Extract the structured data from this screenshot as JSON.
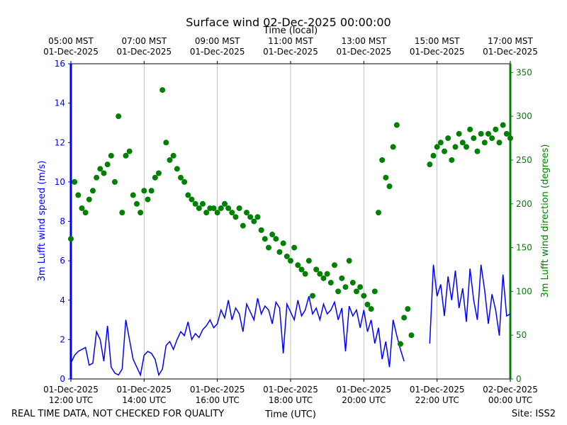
{
  "chart_data": {
    "type": "line",
    "title": "Surface wind 02-Dec-2025 00:00:00",
    "top_axis_label": "Time (local)",
    "xlabel": "Time (UTC)",
    "ylabel": "3m Lufft wind speed (m/s)",
    "y2label": "3m Lufft wind direction (degrees)",
    "footer_left": "REAL TIME DATA, NOT CHECKED FOR QUALITY",
    "footer_right": "Site: ISS2",
    "xlim": [
      12,
      24
    ],
    "xticks": [
      {
        "value": 12,
        "label": [
          "01-Dec-2025",
          "12:00 UTC"
        ]
      },
      {
        "value": 14,
        "label": [
          "01-Dec-2025",
          "14:00 UTC"
        ]
      },
      {
        "value": 16,
        "label": [
          "01-Dec-2025",
          "16:00 UTC"
        ]
      },
      {
        "value": 18,
        "label": [
          "01-Dec-2025",
          "18:00 UTC"
        ]
      },
      {
        "value": 20,
        "label": [
          "01-Dec-2025",
          "20:00 UTC"
        ]
      },
      {
        "value": 22,
        "label": [
          "01-Dec-2025",
          "22:00 UTC"
        ]
      },
      {
        "value": 24,
        "label": [
          "02-Dec-2025",
          "00:00 UTC"
        ]
      }
    ],
    "top_xticks": [
      {
        "value": 12,
        "label": [
          "05:00 MST",
          "01-Dec-2025"
        ]
      },
      {
        "value": 14,
        "label": [
          "07:00 MST",
          "01-Dec-2025"
        ]
      },
      {
        "value": 16,
        "label": [
          "09:00 MST",
          "01-Dec-2025"
        ]
      },
      {
        "value": 18,
        "label": [
          "11:00 MST",
          "01-Dec-2025"
        ]
      },
      {
        "value": 20,
        "label": [
          "13:00 MST",
          "01-Dec-2025"
        ]
      },
      {
        "value": 22,
        "label": [
          "15:00 MST",
          "01-Dec-2025"
        ]
      },
      {
        "value": 24,
        "label": [
          "17:00 MST",
          "01-Dec-2025"
        ]
      }
    ],
    "ylim": [
      0,
      16
    ],
    "yticks": [
      0,
      2,
      4,
      6,
      8,
      10,
      12,
      14,
      16
    ],
    "y2lim": [
      0,
      360
    ],
    "y2ticks": [
      0,
      50,
      100,
      150,
      200,
      250,
      300,
      350
    ],
    "grid": true,
    "x": [
      12.0,
      12.1,
      12.2,
      12.3,
      12.4,
      12.5,
      12.6,
      12.7,
      12.8,
      12.9,
      13.0,
      13.1,
      13.2,
      13.3,
      13.4,
      13.5,
      13.6,
      13.7,
      13.8,
      13.9,
      14.0,
      14.1,
      14.2,
      14.3,
      14.4,
      14.5,
      14.6,
      14.7,
      14.8,
      14.9,
      15.0,
      15.1,
      15.2,
      15.3,
      15.4,
      15.5,
      15.6,
      15.7,
      15.8,
      15.9,
      16.0,
      16.1,
      16.2,
      16.3,
      16.4,
      16.5,
      16.6,
      16.7,
      16.8,
      16.9,
      17.0,
      17.1,
      17.2,
      17.3,
      17.4,
      17.5,
      17.6,
      17.7,
      17.8,
      17.9,
      18.0,
      18.1,
      18.2,
      18.3,
      18.4,
      18.5,
      18.6,
      18.7,
      18.8,
      18.9,
      19.0,
      19.1,
      19.2,
      19.3,
      19.4,
      19.5,
      19.6,
      19.7,
      19.8,
      19.9,
      20.0,
      20.1,
      20.2,
      20.3,
      20.4,
      20.5,
      20.6,
      20.7,
      20.8,
      20.9,
      21.0,
      21.1,
      21.2,
      21.3,
      21.4,
      21.5,
      21.6,
      21.7,
      21.8,
      21.9,
      22.0,
      22.1,
      22.2,
      22.3,
      22.4,
      22.5,
      22.6,
      22.7,
      22.8,
      22.9,
      23.0,
      23.1,
      23.2,
      23.3,
      23.4,
      23.5,
      23.6,
      23.7,
      23.8,
      23.9,
      24.0
    ],
    "series": [
      {
        "type": "line",
        "color": "#0000ff",
        "axis": "y",
        "values": [
          0.8,
          1.2,
          1.4,
          1.5,
          1.6,
          0.7,
          0.8,
          2.4,
          2.0,
          0.9,
          2.7,
          0.6,
          0.3,
          0.2,
          0.5,
          3.0,
          2.0,
          1.0,
          0.6,
          0.2,
          1.2,
          1.4,
          1.3,
          1.0,
          0.2,
          0.5,
          1.7,
          1.9,
          1.5,
          2.0,
          2.4,
          2.2,
          2.9,
          2.0,
          2.3,
          2.1,
          2.5,
          2.7,
          3.0,
          2.6,
          2.8,
          3.5,
          3.1,
          4.0,
          3.0,
          3.6,
          3.3,
          2.4,
          3.8,
          3.4,
          3.0,
          4.1,
          3.3,
          3.7,
          3.5,
          2.8,
          3.9,
          3.6,
          1.3,
          3.8,
          3.4,
          3.0,
          4.0,
          3.2,
          3.5,
          4.2,
          3.3,
          3.6,
          3.0,
          3.8,
          3.3,
          3.5,
          3.9,
          3.0,
          3.6,
          1.4,
          3.7,
          3.2,
          3.5,
          2.6,
          3.5,
          2.4,
          3.0,
          1.8,
          2.6,
          1.0,
          1.9,
          0.6,
          3.0,
          2.2,
          1.5,
          0.9,
          null,
          null,
          null,
          null,
          null,
          null,
          1.8,
          5.8,
          4.2,
          4.8,
          3.2,
          5.2,
          4.0,
          5.5,
          3.6,
          4.6,
          2.9,
          5.6,
          4.0,
          3.0,
          5.8,
          4.5,
          2.8,
          4.3,
          3.5,
          2.2,
          5.3,
          3.2,
          3.3
        ]
      },
      {
        "type": "scatter",
        "color": "#008000",
        "axis": "y2",
        "values": [
          160,
          225,
          210,
          195,
          190,
          205,
          215,
          230,
          240,
          235,
          245,
          255,
          225,
          300,
          190,
          255,
          260,
          210,
          200,
          190,
          215,
          205,
          215,
          230,
          235,
          330,
          270,
          250,
          255,
          240,
          230,
          225,
          210,
          205,
          200,
          195,
          200,
          190,
          195,
          195,
          190,
          195,
          200,
          195,
          190,
          185,
          195,
          175,
          190,
          185,
          180,
          185,
          170,
          160,
          150,
          165,
          160,
          145,
          155,
          140,
          135,
          150,
          130,
          125,
          120,
          135,
          95,
          125,
          120,
          115,
          120,
          110,
          130,
          100,
          115,
          105,
          135,
          110,
          100,
          105,
          95,
          85,
          80,
          100,
          190,
          250,
          230,
          220,
          265,
          290,
          40,
          70,
          80,
          50,
          null,
          null,
          null,
          null,
          245,
          255,
          265,
          270,
          260,
          275,
          250,
          265,
          280,
          270,
          265,
          285,
          275,
          260,
          280,
          270,
          280,
          275,
          285,
          270,
          290,
          280,
          275
        ]
      }
    ]
  }
}
